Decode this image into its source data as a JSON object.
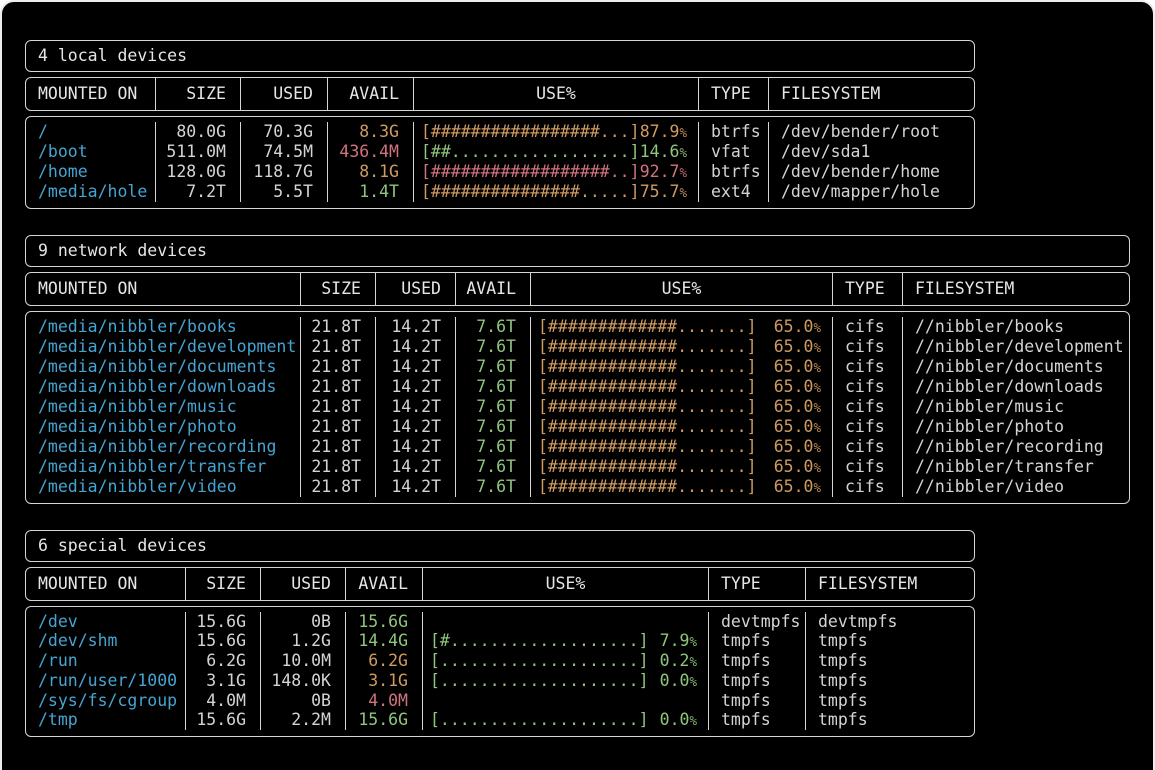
{
  "palette": {
    "fg": "#d4d4d4",
    "hdr": "#e6e6e6",
    "border": "#d4d4d4",
    "cyan": "#46a4d2",
    "green": "#8fc57c",
    "yellow": "#cf9b60",
    "red": "#d0737e"
  },
  "tables": [
    {
      "title": "4 local devices",
      "headers": [
        "MOUNTED ON",
        "SIZE",
        "USED",
        "AVAIL",
        "USE%",
        "TYPE",
        "FILESYSTEM"
      ],
      "rows": [
        {
          "mount": "/",
          "size": "80.0G",
          "used": "70.3G",
          "avail": "8.3G",
          "availColor": "yellow",
          "bar": "[#################...]",
          "pct": "87.9%",
          "barColor": "yellow",
          "type": "btrfs",
          "filesystem": "/dev/bender/root"
        },
        {
          "mount": "/boot",
          "size": "511.0M",
          "used": "74.5M",
          "avail": "436.4M",
          "availColor": "red",
          "bar": "[##..................]",
          "pct": "14.6%",
          "barColor": "green",
          "type": "vfat",
          "filesystem": "/dev/sda1"
        },
        {
          "mount": "/home",
          "size": "128.0G",
          "used": "118.7G",
          "avail": "8.1G",
          "availColor": "yellow",
          "bar": "[##################..]",
          "pct": "92.7%",
          "barColor": "red",
          "type": "btrfs",
          "filesystem": "/dev/bender/home"
        },
        {
          "mount": "/media/hole",
          "size": "7.2T",
          "used": "5.5T",
          "avail": "1.4T",
          "availColor": "green",
          "bar": "[###############.....]",
          "pct": "75.7%",
          "barColor": "yellow",
          "type": "ext4",
          "filesystem": "/dev/mapper/hole"
        }
      ]
    },
    {
      "title": "9 network devices",
      "headers": [
        "MOUNTED ON",
        "SIZE",
        "USED",
        "AVAIL",
        "USE%",
        "TYPE",
        "FILESYSTEM"
      ],
      "rows": [
        {
          "mount": "/media/nibbler/books",
          "size": "21.8T",
          "used": "14.2T",
          "avail": "7.6T",
          "availColor": "green",
          "bar": "[#############.......]",
          "pct": "65.0%",
          "barColor": "yellow",
          "type": "cifs",
          "filesystem": "//nibbler/books"
        },
        {
          "mount": "/media/nibbler/development",
          "size": "21.8T",
          "used": "14.2T",
          "avail": "7.6T",
          "availColor": "green",
          "bar": "[#############.......]",
          "pct": "65.0%",
          "barColor": "yellow",
          "type": "cifs",
          "filesystem": "//nibbler/development"
        },
        {
          "mount": "/media/nibbler/documents",
          "size": "21.8T",
          "used": "14.2T",
          "avail": "7.6T",
          "availColor": "green",
          "bar": "[#############.......]",
          "pct": "65.0%",
          "barColor": "yellow",
          "type": "cifs",
          "filesystem": "//nibbler/documents"
        },
        {
          "mount": "/media/nibbler/downloads",
          "size": "21.8T",
          "used": "14.2T",
          "avail": "7.6T",
          "availColor": "green",
          "bar": "[#############.......]",
          "pct": "65.0%",
          "barColor": "yellow",
          "type": "cifs",
          "filesystem": "//nibbler/downloads"
        },
        {
          "mount": "/media/nibbler/music",
          "size": "21.8T",
          "used": "14.2T",
          "avail": "7.6T",
          "availColor": "green",
          "bar": "[#############.......]",
          "pct": "65.0%",
          "barColor": "yellow",
          "type": "cifs",
          "filesystem": "//nibbler/music"
        },
        {
          "mount": "/media/nibbler/photo",
          "size": "21.8T",
          "used": "14.2T",
          "avail": "7.6T",
          "availColor": "green",
          "bar": "[#############.......]",
          "pct": "65.0%",
          "barColor": "yellow",
          "type": "cifs",
          "filesystem": "//nibbler/photo"
        },
        {
          "mount": "/media/nibbler/recording",
          "size": "21.8T",
          "used": "14.2T",
          "avail": "7.6T",
          "availColor": "green",
          "bar": "[#############.......]",
          "pct": "65.0%",
          "barColor": "yellow",
          "type": "cifs",
          "filesystem": "//nibbler/recording"
        },
        {
          "mount": "/media/nibbler/transfer",
          "size": "21.8T",
          "used": "14.2T",
          "avail": "7.6T",
          "availColor": "green",
          "bar": "[#############.......]",
          "pct": "65.0%",
          "barColor": "yellow",
          "type": "cifs",
          "filesystem": "//nibbler/transfer"
        },
        {
          "mount": "/media/nibbler/video",
          "size": "21.8T",
          "used": "14.2T",
          "avail": "7.6T",
          "availColor": "green",
          "bar": "[#############.......]",
          "pct": "65.0%",
          "barColor": "yellow",
          "type": "cifs",
          "filesystem": "//nibbler/video"
        }
      ]
    },
    {
      "title": "6 special devices",
      "headers": [
        "MOUNTED ON",
        "SIZE",
        "USED",
        "AVAIL",
        "USE%",
        "TYPE",
        "FILESYSTEM"
      ],
      "rows": [
        {
          "mount": "/dev",
          "size": "15.6G",
          "used": "0B",
          "avail": "15.6G",
          "availColor": "green",
          "bar": "",
          "pct": "",
          "barColor": "green",
          "type": "devtmpfs",
          "filesystem": "devtmpfs"
        },
        {
          "mount": "/dev/shm",
          "size": "15.6G",
          "used": "1.2G",
          "avail": "14.4G",
          "availColor": "green",
          "bar": "[#...................]",
          "pct": "7.9%",
          "barColor": "green",
          "type": "tmpfs",
          "filesystem": "tmpfs"
        },
        {
          "mount": "/run",
          "size": "6.2G",
          "used": "10.0M",
          "avail": "6.2G",
          "availColor": "yellow",
          "bar": "[....................]",
          "pct": "0.2%",
          "barColor": "green",
          "type": "tmpfs",
          "filesystem": "tmpfs"
        },
        {
          "mount": "/run/user/1000",
          "size": "3.1G",
          "used": "148.0K",
          "avail": "3.1G",
          "availColor": "yellow",
          "bar": "[....................]",
          "pct": "0.0%",
          "barColor": "green",
          "type": "tmpfs",
          "filesystem": "tmpfs"
        },
        {
          "mount": "/sys/fs/cgroup",
          "size": "4.0M",
          "used": "0B",
          "avail": "4.0M",
          "availColor": "red",
          "bar": "",
          "pct": "",
          "barColor": "green",
          "type": "tmpfs",
          "filesystem": "tmpfs"
        },
        {
          "mount": "/tmp",
          "size": "15.6G",
          "used": "2.2M",
          "avail": "15.6G",
          "availColor": "green",
          "bar": "[....................]",
          "pct": "0.0%",
          "barColor": "green",
          "type": "tmpfs",
          "filesystem": "tmpfs"
        }
      ]
    }
  ]
}
